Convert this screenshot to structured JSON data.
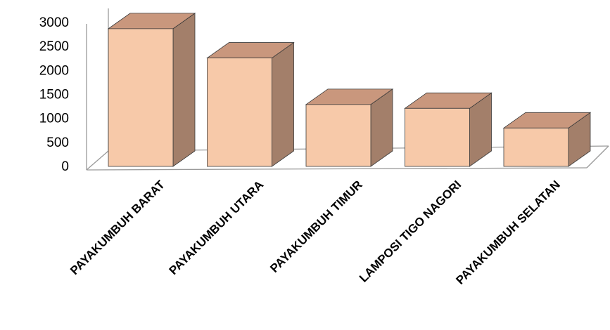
{
  "chart_data": {
    "type": "bar",
    "style": "3d-column",
    "categories": [
      "PAYAKUMBUH BARAT",
      "PAYAKUMBUH UTARA",
      "PAYAKUMBUH TIMUR",
      "LAMPOSI TIGO NAGORI",
      "PAYAKUMBUH SELATAN"
    ],
    "values": [
      2870,
      2260,
      1290,
      1210,
      800
    ],
    "ylim": [
      0,
      3000
    ],
    "yticks": [
      "0",
      "500",
      "1000",
      "1500",
      "2000",
      "2500",
      "3000"
    ],
    "grid": false,
    "legend": "none"
  },
  "colors": {
    "front": "#F7C9A9",
    "top": "#C9977D",
    "side": "#A37F6A",
    "edge": "#3A3A3A",
    "floor_line": "#9A9A9A"
  }
}
